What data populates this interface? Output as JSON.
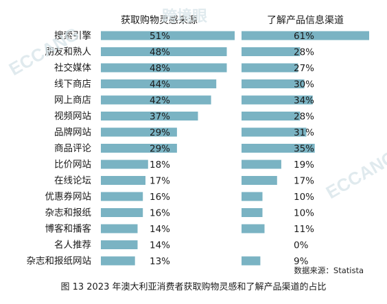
{
  "chart_data": {
    "type": "bar",
    "orientation": "horizontal",
    "categories": [
      "搜索引擎",
      "朋友和熟人",
      "社交媒体",
      "线下商店",
      "网上商店",
      "视频网站",
      "品牌网站",
      "商品评论",
      "比价网站",
      "在线论坛",
      "优惠券网站",
      "杂志和报纸",
      "博客和播客",
      "名人推荐",
      "杂志和报纸网站"
    ],
    "series": [
      {
        "name": "获取购物灵感来源",
        "values": [
          51,
          48,
          48,
          44,
          42,
          37,
          29,
          29,
          18,
          17,
          16,
          16,
          14,
          14,
          13
        ],
        "value_labels": [
          "51%",
          "48%",
          "48%",
          "44%",
          "42%",
          "37%",
          "29%",
          "29%",
          "18%",
          "17%",
          "16%",
          "16%",
          "14%",
          "14%",
          "13%"
        ]
      },
      {
        "name": "了解产品信息渠道",
        "values": [
          61,
          28,
          27,
          30,
          34,
          28,
          31,
          35,
          19,
          17,
          10,
          10,
          11,
          0,
          9
        ],
        "value_labels": [
          "61%",
          "28%",
          "27%",
          "30%",
          "34%",
          "28%",
          "31%",
          "35%",
          "19%",
          "17%",
          "10%",
          "10%",
          "11%",
          "0%",
          "9%"
        ]
      }
    ],
    "bar_color": "#7ab3c3",
    "label_color": "#1a1a1a",
    "source": "数据来源：Statista",
    "caption": "图 13  2023 年澳大利亚消费者获取购物灵感和了解产品渠道的占比"
  }
}
